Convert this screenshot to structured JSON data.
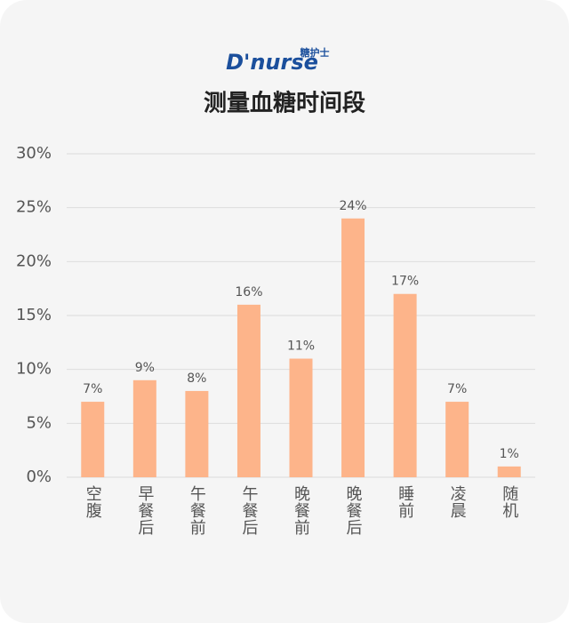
{
  "logo": {
    "brand": "D'nurse",
    "tag": "糖护士"
  },
  "chart_data": {
    "type": "bar",
    "title": "测量血糖时间段",
    "categories": [
      "空腹",
      "早餐后",
      "午餐前",
      "午餐后",
      "晚餐前",
      "晚餐后",
      "睡前",
      "凌晨",
      "随机"
    ],
    "values": [
      7,
      9,
      8,
      16,
      11,
      24,
      17,
      7,
      1
    ],
    "value_labels": [
      "7%",
      "9%",
      "8%",
      "16%",
      "11%",
      "24%",
      "17%",
      "7%",
      "1%"
    ],
    "color": "#fdb48a",
    "ylim": [
      0,
      30
    ],
    "yticks": [
      {
        "value": 0,
        "label": "0%"
      },
      {
        "value": 5,
        "label": "5%"
      },
      {
        "value": 10,
        "label": "10%"
      },
      {
        "value": 15,
        "label": "15%"
      },
      {
        "value": 20,
        "label": "20%"
      },
      {
        "value": 25,
        "label": "25%"
      },
      {
        "value": 30,
        "label": "30%"
      }
    ],
    "grid": true
  }
}
